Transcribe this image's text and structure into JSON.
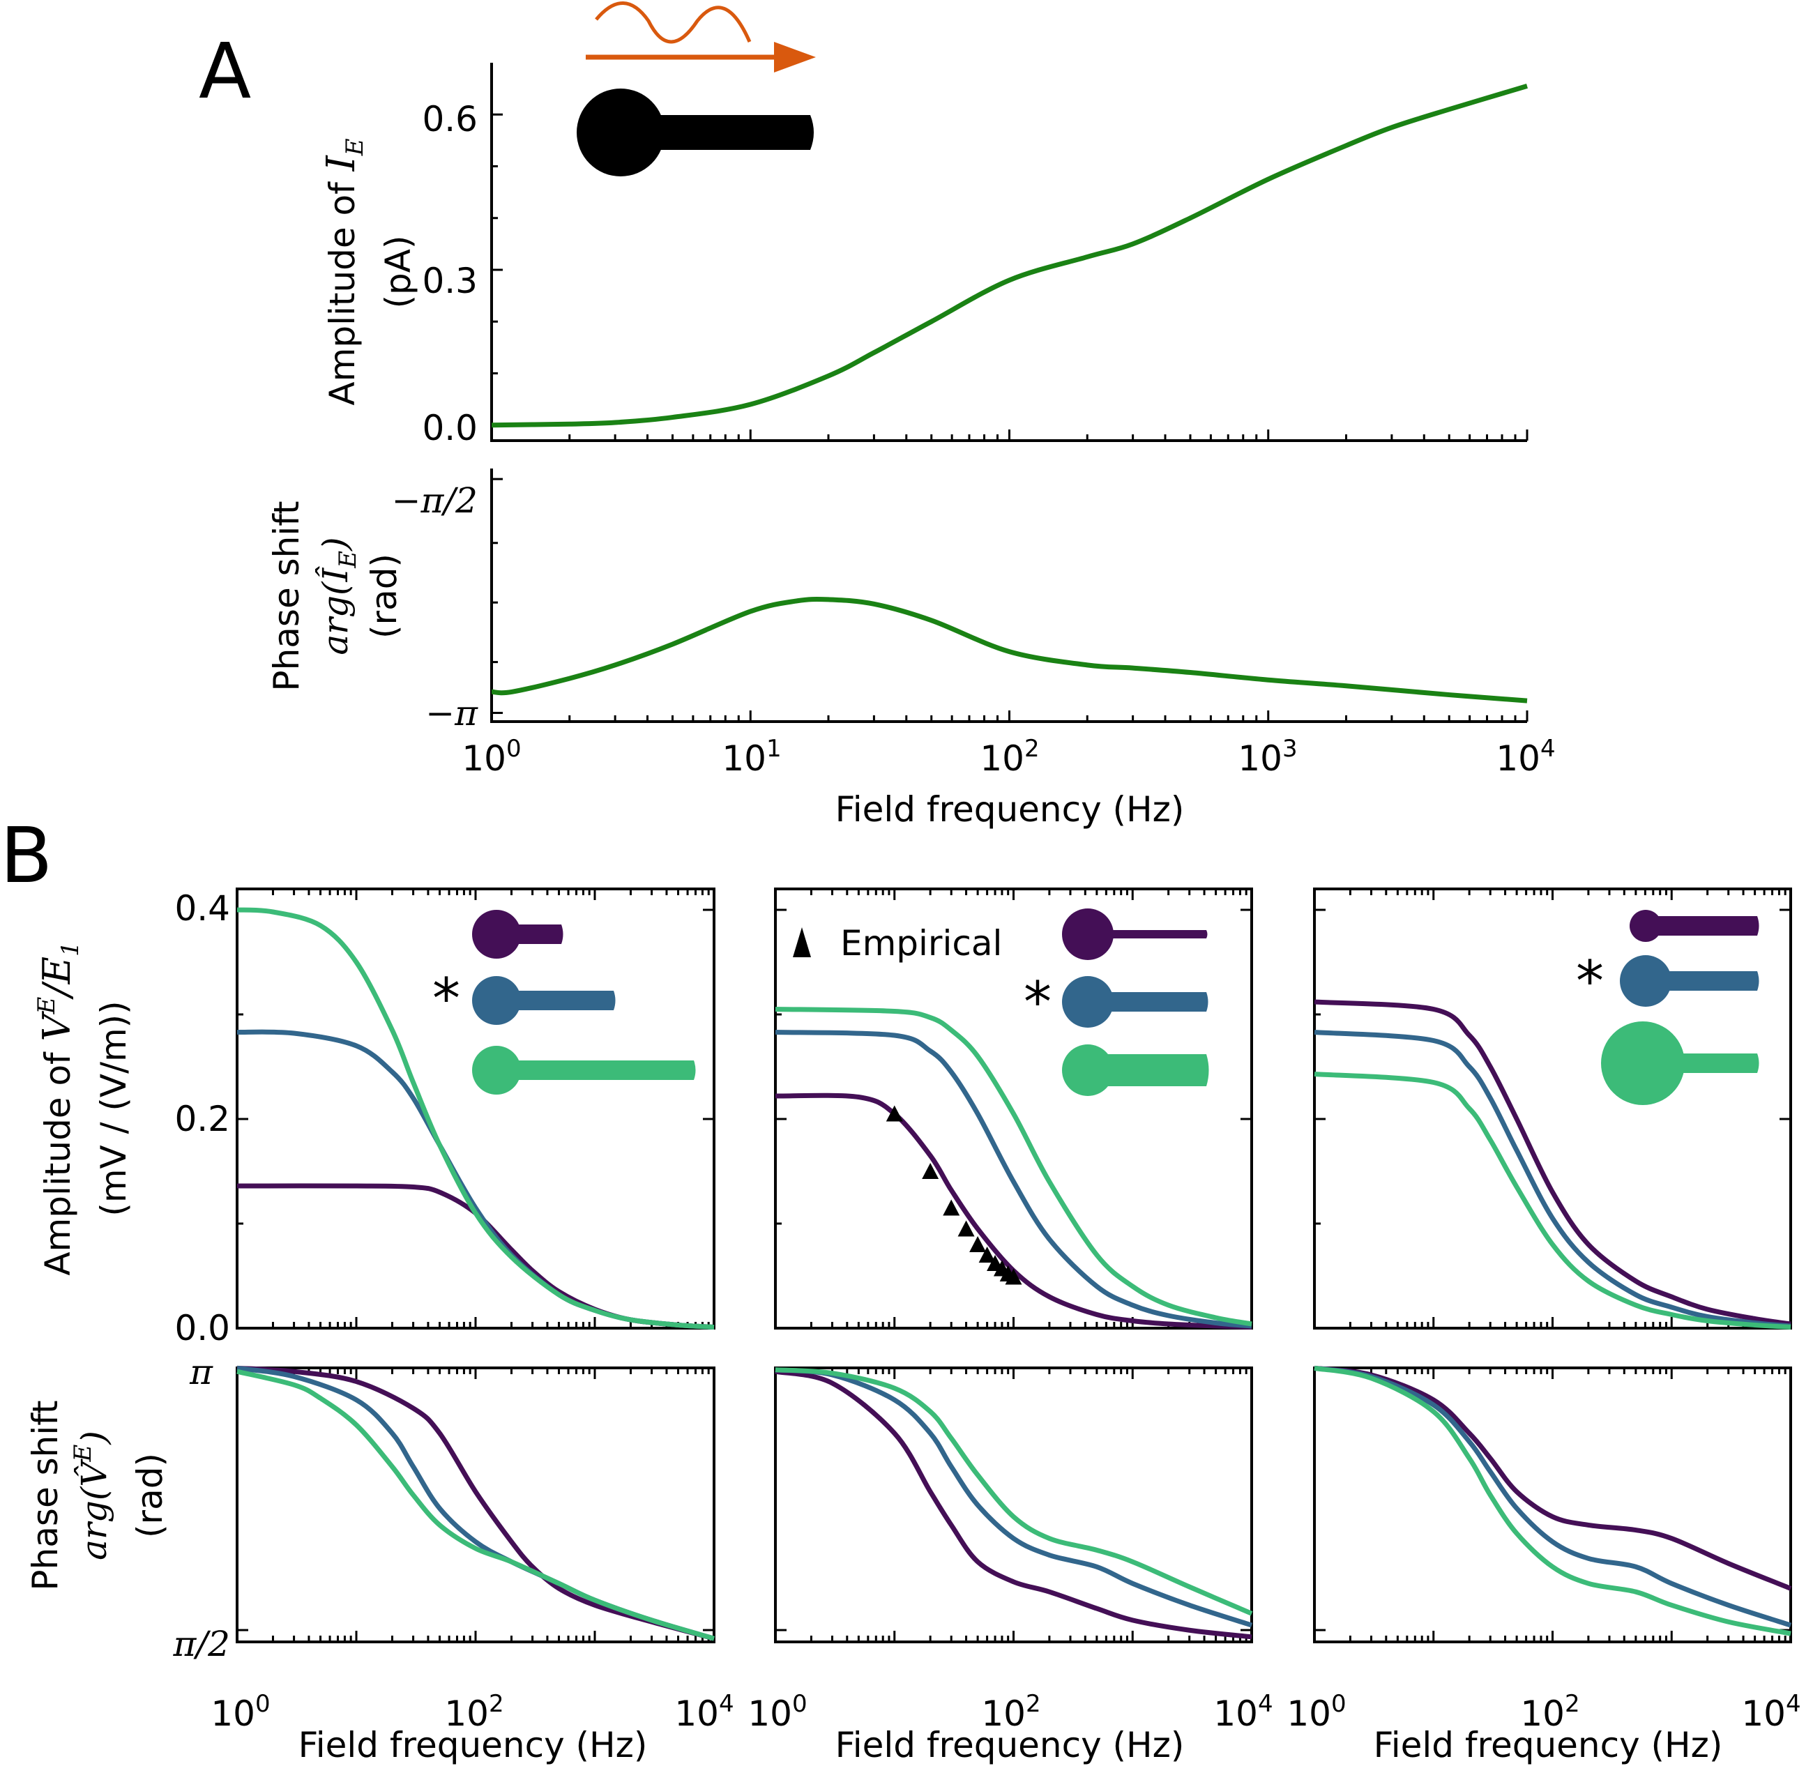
{
  "colors": {
    "green": "#1a8214",
    "purple": "#440f56",
    "blue": "#32668c",
    "teal": "#3cbb78",
    "orange": "#d9590e",
    "black": "#000000"
  },
  "panel_labels": {
    "a": "A",
    "b": "B"
  },
  "x_axis_label": "Field frequency (Hz)",
  "x_ticks": [
    {
      "base": "10",
      "exp": "0"
    },
    {
      "base": "10",
      "exp": "1"
    },
    {
      "base": "10",
      "exp": "2"
    },
    {
      "base": "10",
      "exp": "3"
    },
    {
      "base": "10",
      "exp": "4"
    }
  ],
  "x_ticks_b": [
    {
      "base": "10",
      "exp": "0"
    },
    {
      "base": "10",
      "exp": "2"
    },
    {
      "base": "10",
      "exp": "4"
    }
  ],
  "A_top": {
    "ylabel_text": "Amplitude of ",
    "ylabel_math": "I",
    "ylabel_sub": "E",
    "ylabel_unit": "(pA)",
    "yticks": [
      "0.0",
      "0.3",
      "0.6"
    ]
  },
  "A_bottom": {
    "ylabel_text": "Phase shift",
    "ylabel_math": "arg(Î",
    "ylabel_sub": "E",
    "ylabel_close": ")",
    "ylabel_unit": "(rad)",
    "yticks": [
      "−π",
      "−π/2"
    ]
  },
  "B_top": {
    "ylabel_text": "Amplitude of ",
    "ylabel_math": "V",
    "ylabel_sup": "E",
    "ylabel_mid": "/E",
    "ylabel_sub": "1",
    "ylabel_unit": "(mV / (V/m))",
    "yticks": [
      "0.0",
      "0.2",
      "0.4"
    ],
    "empirical_label": "Empirical",
    "star": "*"
  },
  "B_bottom": {
    "ylabel_text": "Phase shift",
    "ylabel_math": "arg(V̂",
    "ylabel_sup": "E",
    "ylabel_close": ")",
    "ylabel_unit": "(rad)",
    "yticks": [
      "π/2",
      "π"
    ]
  },
  "chart_data": [
    {
      "id": "A_amplitude",
      "type": "line",
      "xscale": "log",
      "xlim": [
        1,
        10000
      ],
      "ylim": [
        -0.03,
        0.7
      ],
      "series": [
        {
          "name": "I_E amplitude",
          "color": "green",
          "x": [
            1,
            2,
            3,
            5,
            10,
            20,
            30,
            50,
            100,
            200,
            300,
            500,
            1000,
            2000,
            3000,
            5000,
            10000
          ],
          "y": [
            0.0,
            0.002,
            0.005,
            0.015,
            0.04,
            0.095,
            0.14,
            0.2,
            0.28,
            0.325,
            0.35,
            0.4,
            0.475,
            0.54,
            0.575,
            0.61,
            0.655
          ]
        }
      ]
    },
    {
      "id": "A_phase",
      "type": "line",
      "xscale": "log",
      "xlim": [
        1,
        10000
      ],
      "ylim": [
        -3.2,
        -1.5
      ],
      "series": [
        {
          "name": "arg I_E",
          "color": "green",
          "x": [
            1,
            1.2,
            2,
            3,
            5,
            10,
            15,
            20,
            30,
            50,
            100,
            200,
            300,
            500,
            1000,
            2000,
            5000,
            10000
          ],
          "y": [
            -3.0,
            -3.0,
            -2.91,
            -2.82,
            -2.68,
            -2.46,
            -2.39,
            -2.38,
            -2.41,
            -2.52,
            -2.73,
            -2.82,
            -2.84,
            -2.87,
            -2.92,
            -2.96,
            -3.02,
            -3.06
          ]
        }
      ]
    },
    {
      "id": "B_amp_1",
      "type": "line",
      "xscale": "log",
      "xlim": [
        1,
        10000
      ],
      "ylim": [
        0,
        0.42
      ],
      "series": [
        {
          "name": "short dendrite",
          "color": "purple",
          "x": [
            1,
            10,
            30,
            50,
            100,
            200,
            300,
            500,
            1000,
            2000,
            5000,
            10000
          ],
          "y": [
            0.136,
            0.136,
            0.135,
            0.13,
            0.11,
            0.075,
            0.055,
            0.035,
            0.018,
            0.008,
            0.003,
            0.001
          ]
        },
        {
          "name": "medium dendrite",
          "color": "blue",
          "x": [
            1,
            3,
            10,
            20,
            30,
            50,
            100,
            200,
            500,
            1000,
            2000,
            5000,
            10000
          ],
          "y": [
            0.283,
            0.282,
            0.27,
            0.245,
            0.22,
            0.175,
            0.115,
            0.07,
            0.032,
            0.017,
            0.008,
            0.003,
            0.001
          ]
        },
        {
          "name": "long dendrite",
          "color": "teal",
          "x": [
            1,
            2,
            5,
            10,
            20,
            30,
            50,
            100,
            200,
            500,
            1000,
            2000,
            5000,
            10000
          ],
          "y": [
            0.4,
            0.398,
            0.385,
            0.35,
            0.285,
            0.235,
            0.175,
            0.11,
            0.068,
            0.032,
            0.017,
            0.008,
            0.003,
            0.001
          ]
        }
      ]
    },
    {
      "id": "B_amp_2",
      "type": "line",
      "xscale": "log",
      "xlim": [
        1,
        10000
      ],
      "ylim": [
        0,
        0.42
      ],
      "series": [
        {
          "name": "thin dendrite",
          "color": "purple",
          "x": [
            1,
            5,
            10,
            20,
            30,
            50,
            100,
            200,
            500,
            1000,
            2000,
            5000,
            10000
          ],
          "y": [
            0.222,
            0.221,
            0.205,
            0.165,
            0.132,
            0.095,
            0.055,
            0.03,
            0.013,
            0.007,
            0.004,
            0.002,
            0.001
          ]
        },
        {
          "name": "medium dendrite",
          "color": "blue",
          "x": [
            1,
            10,
            20,
            30,
            50,
            100,
            200,
            500,
            1000,
            2000,
            5000,
            10000
          ],
          "y": [
            0.283,
            0.28,
            0.265,
            0.245,
            0.205,
            0.14,
            0.085,
            0.04,
            0.022,
            0.012,
            0.005,
            0.002
          ]
        },
        {
          "name": "thick dendrite",
          "color": "teal",
          "x": [
            1,
            10,
            20,
            30,
            50,
            100,
            200,
            500,
            1000,
            2000,
            5000,
            10000
          ],
          "y": [
            0.305,
            0.303,
            0.297,
            0.285,
            0.26,
            0.205,
            0.14,
            0.07,
            0.04,
            0.022,
            0.01,
            0.004
          ]
        },
        {
          "name": "Empirical",
          "color": "black",
          "marker": "triangle",
          "x": [
            10,
            20,
            30,
            40,
            50,
            60,
            70,
            80,
            90,
            100
          ],
          "y": [
            0.205,
            0.15,
            0.115,
            0.095,
            0.08,
            0.07,
            0.062,
            0.057,
            0.052,
            0.049
          ]
        }
      ]
    },
    {
      "id": "B_amp_3",
      "type": "line",
      "xscale": "log",
      "xlim": [
        1,
        10000
      ],
      "ylim": [
        0,
        0.42
      ],
      "series": [
        {
          "name": "small soma",
          "color": "purple",
          "x": [
            1,
            10,
            20,
            30,
            50,
            100,
            200,
            500,
            1000,
            2000,
            5000,
            10000
          ],
          "y": [
            0.312,
            0.305,
            0.28,
            0.25,
            0.2,
            0.13,
            0.08,
            0.045,
            0.03,
            0.018,
            0.009,
            0.004
          ]
        },
        {
          "name": "medium soma",
          "color": "blue",
          "x": [
            1,
            10,
            20,
            30,
            50,
            100,
            200,
            500,
            1000,
            2000,
            5000,
            10000
          ],
          "y": [
            0.283,
            0.275,
            0.25,
            0.22,
            0.17,
            0.105,
            0.063,
            0.032,
            0.02,
            0.011,
            0.005,
            0.002
          ]
        },
        {
          "name": "large soma",
          "color": "teal",
          "x": [
            1,
            10,
            20,
            30,
            50,
            100,
            200,
            500,
            1000,
            2000,
            5000,
            10000
          ],
          "y": [
            0.243,
            0.235,
            0.21,
            0.18,
            0.135,
            0.08,
            0.045,
            0.022,
            0.013,
            0.007,
            0.003,
            0.001
          ]
        }
      ]
    },
    {
      "id": "B_phase_1",
      "type": "line",
      "xscale": "log",
      "xlim": [
        1,
        10000
      ],
      "ylim": [
        1.5,
        3.1416
      ],
      "series": [
        {
          "name": "short dendrite",
          "color": "purple",
          "x": [
            1,
            3,
            10,
            30,
            50,
            100,
            200,
            300,
            500,
            1000,
            3000,
            10000
          ],
          "y": [
            3.14,
            3.12,
            3.06,
            2.9,
            2.75,
            2.4,
            2.1,
            1.95,
            1.82,
            1.72,
            1.62,
            1.52
          ]
        },
        {
          "name": "medium dendrite",
          "color": "blue",
          "x": [
            1,
            3,
            10,
            20,
            30,
            50,
            100,
            200,
            500,
            1000,
            3000,
            10000
          ],
          "y": [
            3.14,
            3.09,
            2.95,
            2.75,
            2.55,
            2.3,
            2.1,
            1.98,
            1.85,
            1.75,
            1.63,
            1.52
          ]
        },
        {
          "name": "long dendrite",
          "color": "teal",
          "x": [
            1,
            3,
            5,
            10,
            20,
            30,
            50,
            100,
            200,
            500,
            1000,
            3000,
            10000
          ],
          "y": [
            3.12,
            3.04,
            2.96,
            2.8,
            2.55,
            2.38,
            2.2,
            2.06,
            1.98,
            1.85,
            1.75,
            1.63,
            1.52
          ]
        }
      ]
    },
    {
      "id": "B_phase_2",
      "type": "line",
      "xscale": "log",
      "xlim": [
        1,
        10000
      ],
      "ylim": [
        1.5,
        3.1416
      ],
      "series": [
        {
          "name": "thin dendrite",
          "color": "purple",
          "x": [
            1,
            3,
            10,
            20,
            30,
            50,
            100,
            200,
            500,
            1000,
            3000,
            10000
          ],
          "y": [
            3.12,
            3.05,
            2.75,
            2.4,
            2.2,
            1.98,
            1.86,
            1.8,
            1.7,
            1.63,
            1.57,
            1.53
          ]
        },
        {
          "name": "medium dendrite",
          "color": "blue",
          "x": [
            1,
            3,
            10,
            20,
            30,
            50,
            100,
            200,
            500,
            1000,
            3000,
            10000
          ],
          "y": [
            3.13,
            3.1,
            2.95,
            2.75,
            2.55,
            2.32,
            2.12,
            2.02,
            1.95,
            1.85,
            1.72,
            1.6
          ]
        },
        {
          "name": "thick dendrite",
          "color": "teal",
          "x": [
            1,
            3,
            10,
            20,
            30,
            50,
            100,
            200,
            500,
            1000,
            3000,
            10000
          ],
          "y": [
            3.13,
            3.11,
            3.02,
            2.88,
            2.72,
            2.5,
            2.25,
            2.12,
            2.05,
            1.98,
            1.83,
            1.67
          ]
        }
      ]
    },
    {
      "id": "B_phase_3",
      "type": "line",
      "xscale": "log",
      "xlim": [
        1,
        10000
      ],
      "ylim": [
        1.5,
        3.1416
      ],
      "series": [
        {
          "name": "small soma",
          "color": "purple",
          "x": [
            1,
            3,
            10,
            20,
            30,
            50,
            100,
            200,
            500,
            1000,
            3000,
            10000
          ],
          "y": [
            3.14,
            3.1,
            2.95,
            2.75,
            2.6,
            2.4,
            2.25,
            2.2,
            2.17,
            2.12,
            1.97,
            1.82
          ]
        },
        {
          "name": "medium soma",
          "color": "blue",
          "x": [
            1,
            3,
            10,
            20,
            30,
            50,
            100,
            200,
            500,
            1000,
            3000,
            10000
          ],
          "y": [
            3.14,
            3.09,
            2.92,
            2.7,
            2.52,
            2.3,
            2.1,
            2.0,
            1.95,
            1.85,
            1.72,
            1.6
          ]
        },
        {
          "name": "large soma",
          "color": "teal",
          "x": [
            1,
            3,
            10,
            20,
            30,
            50,
            100,
            200,
            500,
            1000,
            3000,
            10000
          ],
          "y": [
            3.14,
            3.08,
            2.88,
            2.6,
            2.38,
            2.15,
            1.95,
            1.85,
            1.8,
            1.72,
            1.62,
            1.55
          ]
        }
      ]
    }
  ]
}
